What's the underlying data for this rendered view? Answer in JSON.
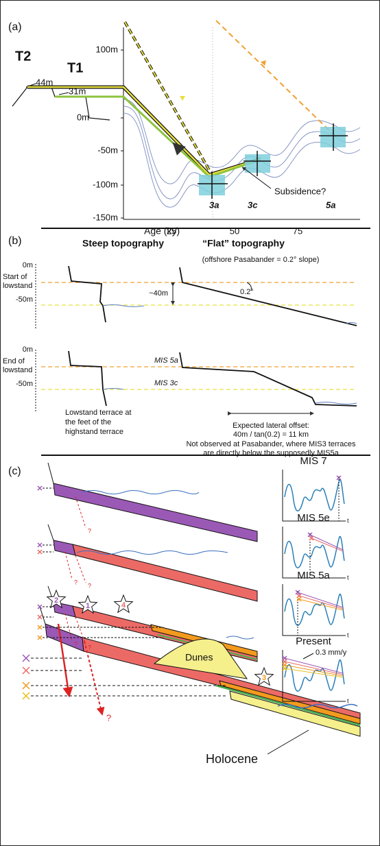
{
  "panel_a": {
    "label": "(a)",
    "terraces": [
      "T2",
      "T1"
    ],
    "terrace_heights": [
      "44m",
      "31m"
    ],
    "y_ticks": [
      "100m",
      "0m",
      "-50m",
      "-100m",
      "-150m"
    ],
    "x_title": "Age (ky)",
    "x_ticks": [
      "25",
      "50",
      "75"
    ],
    "stages": [
      "3a",
      "3c",
      "5a"
    ],
    "annotation": "Subsidence?"
  },
  "panel_b": {
    "label": "(b)",
    "steep_title": "Steep topography",
    "flat_title": "“Flat” topography",
    "flat_subtitle": "(offshore Pasabander = 0.2° slope)",
    "depth_ticks": [
      "0m",
      "-50m"
    ],
    "rows": [
      [
        "Start of",
        "lowstand"
      ],
      [
        "End of",
        "lowstand"
      ]
    ],
    "offset": "~40m",
    "slope": "0.2°",
    "stage_lines": [
      "MIS 5a",
      "MIS 3c"
    ],
    "steep_note": [
      "Lowstand terrace at",
      "the feet of the",
      "highstand terrace"
    ],
    "offset_note": [
      "Expected lateral offset:",
      "40m / tan(0.2) = 11 km"
    ],
    "observation": [
      "Not observed at Pasabander, where MIS3 terraces",
      "are directly below the supposedly MIS5a"
    ]
  },
  "panel_c": {
    "label": "(c)",
    "insets": [
      {
        "title": "MIS 7"
      },
      {
        "title": "MIS 5e"
      },
      {
        "title": "MIS 5a"
      },
      {
        "title": "Present",
        "rate": "0.3 mm/y"
      }
    ],
    "time_axis": "t",
    "stars": [
      "1",
      "2",
      "3",
      "4"
    ],
    "question": "?",
    "dunes": "Dunes",
    "holocene": "Holocene"
  }
}
